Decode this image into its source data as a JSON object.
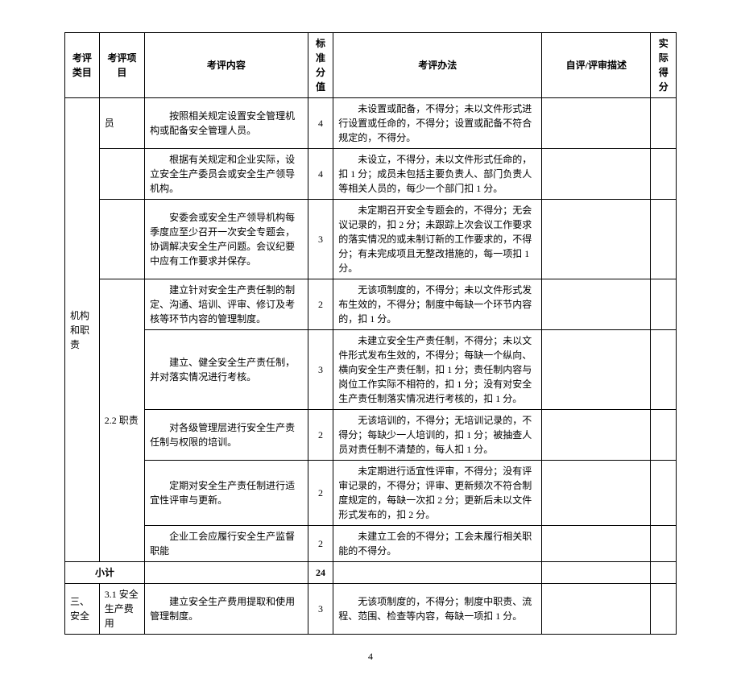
{
  "headers": {
    "category": "考评类目",
    "item": "考评项目",
    "content": "考评内容",
    "score": "标准分值",
    "method": "考评办法",
    "self": "自评/评审描述",
    "actual": "实际得分"
  },
  "rows": [
    {
      "category": "机构和职责",
      "item": "员",
      "content": "按照相关规定设置安全管理机构或配备安全管理人员。",
      "score": "4",
      "method": "未设置或配备，不得分；未以文件形式进行设置或任命的，不得分；设置或配备不符合规定的，不得分。",
      "item_rowspan": 1,
      "cat_rowspan": 8
    },
    {
      "content": "根据有关规定和企业实际，设立安全生产委员会或安全生产领导机构。",
      "score": "4",
      "method": "未设立，不得分，未以文件形式任命的，扣 1 分；成员未包括主要负责人、部门负责人等相关人员的，每少一个部门扣 1 分。"
    },
    {
      "content": "安委会或安全生产领导机构每季度应至少召开一次安全专题会，协调解决安全生产问题。会议纪要中应有工作要求并保存。",
      "score": "3",
      "method": "未定期召开安全专题会的，不得分；无会议记录的，扣 2 分；未跟踪上次会议工作要求的落实情况的或未制订新的工作要求的，不得分；有未完成项且无整改措施的，每一项扣 1 分。"
    },
    {
      "item": "2.2 职责",
      "item_rowspan": 5,
      "content": "建立针对安全生产责任制的制定、沟通、培训、评审、修订及考核等环节内容的管理制度。",
      "score": "2",
      "method": "无该项制度的，不得分；未以文件形式发布生效的，不得分；制度中每缺一个环节内容的，扣 1 分。"
    },
    {
      "content": "建立、健全安全生产责任制，并对落实情况进行考核。",
      "score": "3",
      "method": "未建立安全生产责任制，不得分；未以文件形式发布生效的，不得分；每缺一个纵向、横向安全生产责任制，扣 1 分；责任制内容与岗位工作实际不相符的，扣 1 分；没有对安全生产责任制落实情况进行考核的，扣 1 分。"
    },
    {
      "content": "对各级管理层进行安全生产责任制与权限的培训。",
      "score": "2",
      "method": "无该培训的，不得分；无培训记录的，不得分；每缺少一人培训的，扣 1 分；被抽查人员对责任制不清楚的，每人扣 1 分。"
    },
    {
      "content": "定期对安全生产责任制进行适宜性评审与更新。",
      "score": "2",
      "method": "未定期进行适宜性评审，不得分；没有评审记录的，不得分；评审、更新频次不符合制度规定的，每缺一次扣 2 分；更新后未以文件形式发布的，扣 2 分。"
    },
    {
      "content": "企业工会应履行安全生产监督职能",
      "score": "2",
      "method": "未建立工会的不得分；工会未履行相关职能的不得分。"
    }
  ],
  "subtotal": {
    "label": "小计",
    "value": "24"
  },
  "section3": {
    "category": "三、安全",
    "item": "3.1 安全生产费用",
    "content": "建立安全生产费用提取和使用管理制度。",
    "score": "3",
    "method": "无该项制度的，不得分；制度中职责、流程、范围、检查等内容，每缺一项扣 1 分。"
  },
  "page_number": "4"
}
